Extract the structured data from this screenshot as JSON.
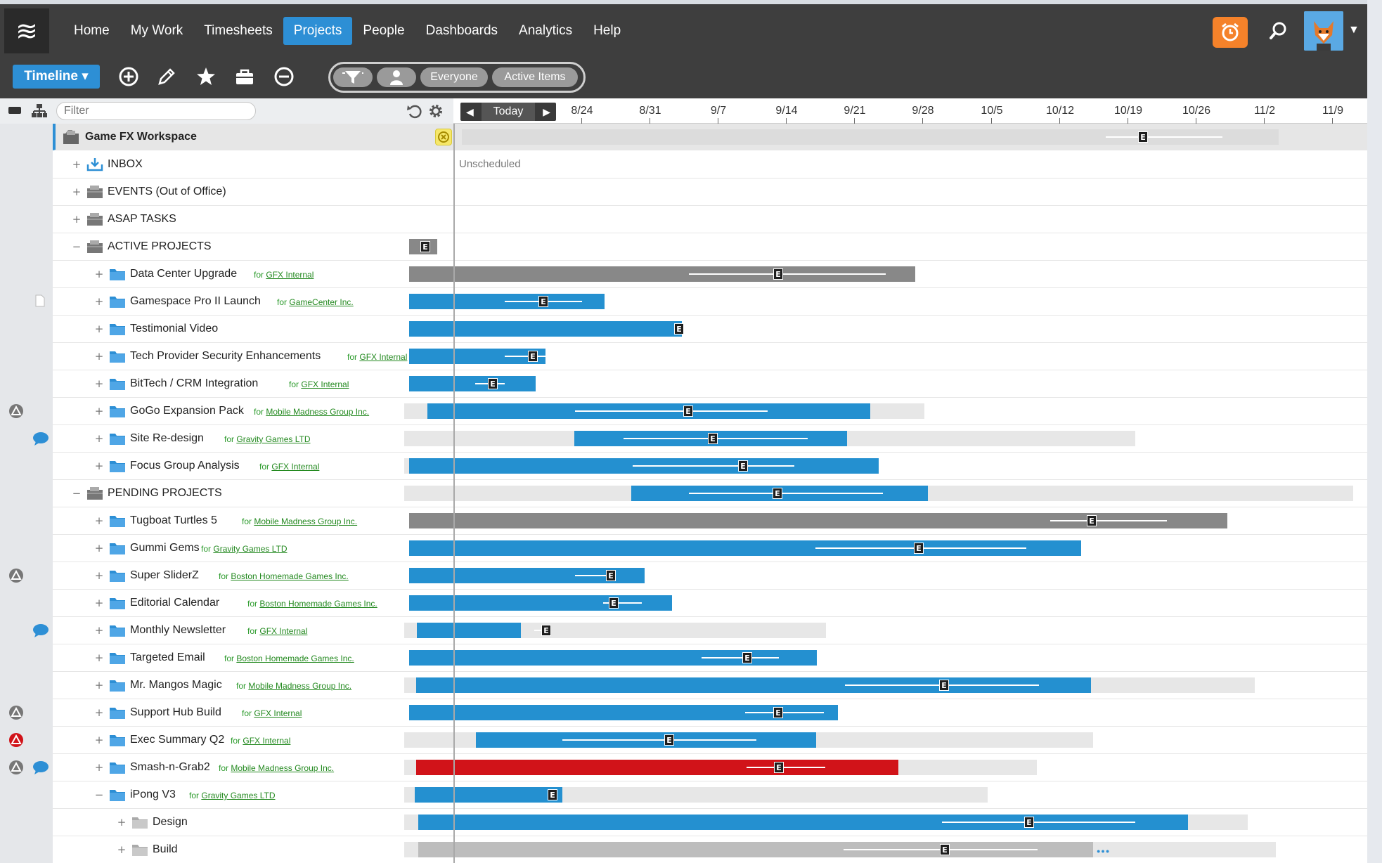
{
  "nav": {
    "menu_icon": "menu-icon",
    "items": [
      {
        "label": "Home",
        "active": false
      },
      {
        "label": "My Work",
        "active": false
      },
      {
        "label": "Timesheets",
        "active": false
      },
      {
        "label": "Projects",
        "active": true
      },
      {
        "label": "People",
        "active": false
      },
      {
        "label": "Dashboards",
        "active": false
      },
      {
        "label": "Analytics",
        "active": false
      },
      {
        "label": "Help",
        "active": false
      }
    ],
    "accent": "#2d8fd5",
    "alarm_color": "#f5822a"
  },
  "toolbar": {
    "view_label": "Timeline ▾",
    "pill_everyone": "Everyone",
    "pill_active": "Active Items",
    "icons": [
      "add-icon",
      "edit-icon",
      "star-icon",
      "briefcase-icon",
      "minus-circle-icon",
      "filter-icon",
      "person-icon"
    ]
  },
  "header": {
    "filter_placeholder": "Filter",
    "today_label": "Today",
    "dates": [
      "8/24",
      "8/31",
      "9/7",
      "9/14",
      "9/21",
      "9/28",
      "10/5",
      "10/12",
      "10/19",
      "10/26",
      "11/2",
      "11/9"
    ]
  },
  "workspace": {
    "name": "Game FX Workspace"
  },
  "unscheduled_label": "Unscheduled",
  "rows": [
    {
      "name": "INBOX",
      "level": 1,
      "kind": "inbox",
      "expander": "+"
    },
    {
      "name": "EVENTS (Out of Office)",
      "level": 1,
      "kind": "group",
      "expander": "+"
    },
    {
      "name": "ASAP TASKS",
      "level": 1,
      "kind": "group",
      "expander": "+"
    },
    {
      "name": "ACTIVE PROJECTS",
      "level": 1,
      "kind": "group",
      "expander": "−"
    },
    {
      "name": "Data Center Upgrade",
      "level": 2,
      "kind": "project",
      "expander": "+",
      "client": "GFX Internal"
    },
    {
      "name": "Gamespace Pro II Launch",
      "level": 2,
      "kind": "project",
      "expander": "+",
      "client": "GameCenter Inc."
    },
    {
      "name": "Testimonial Video",
      "level": 2,
      "kind": "project",
      "expander": "+",
      "client": ""
    },
    {
      "name": "Tech Provider Security Enhancements",
      "level": 2,
      "kind": "project",
      "expander": "+",
      "client": "GFX Internal"
    },
    {
      "name": "BitTech / CRM Integration",
      "level": 2,
      "kind": "project",
      "expander": "+",
      "client": "GFX Internal"
    },
    {
      "name": "GoGo Expansion Pack",
      "level": 2,
      "kind": "project",
      "expander": "+",
      "client": "Mobile Madness Group Inc."
    },
    {
      "name": "Site Re-design",
      "level": 2,
      "kind": "project",
      "expander": "+",
      "client": "Gravity Games LTD"
    },
    {
      "name": "Focus Group Analysis",
      "level": 2,
      "kind": "project",
      "expander": "+",
      "client": "GFX Internal"
    },
    {
      "name": "PENDING PROJECTS",
      "level": 1,
      "kind": "group",
      "expander": "−"
    },
    {
      "name": "Tugboat Turtles 5",
      "level": 2,
      "kind": "project",
      "expander": "+",
      "client": "Mobile Madness Group Inc."
    },
    {
      "name": "Gummi Gems",
      "level": 2,
      "kind": "project",
      "expander": "+",
      "client": "Gravity Games LTD"
    },
    {
      "name": "Super SliderZ",
      "level": 2,
      "kind": "project",
      "expander": "+",
      "client": "Boston Homemade Games Inc."
    },
    {
      "name": "Editorial Calendar",
      "level": 2,
      "kind": "project",
      "expander": "+",
      "client": "Boston Homemade Games Inc."
    },
    {
      "name": "Monthly Newsletter",
      "level": 2,
      "kind": "project",
      "expander": "+",
      "client": "GFX Internal"
    },
    {
      "name": "Targeted Email",
      "level": 2,
      "kind": "project",
      "expander": "+",
      "client": "Boston Homemade Games Inc."
    },
    {
      "name": "Mr. Mangos Magic",
      "level": 2,
      "kind": "project",
      "expander": "+",
      "client": "Mobile Madness Group Inc."
    },
    {
      "name": "Support Hub Build",
      "level": 2,
      "kind": "project",
      "expander": "+",
      "client": "GFX Internal"
    },
    {
      "name": "Exec Summary Q2",
      "level": 2,
      "kind": "project",
      "expander": "+",
      "client": "GFX Internal"
    },
    {
      "name": "Smash-n-Grab2",
      "level": 2,
      "kind": "project",
      "expander": "+",
      "client": "Mobile Madness Group Inc."
    },
    {
      "name": "iPong V3",
      "level": 2,
      "kind": "project",
      "expander": "−",
      "client": "Gravity Games LTD"
    },
    {
      "name": "Design",
      "level": 3,
      "kind": "phase",
      "expander": "+",
      "client": ""
    },
    {
      "name": "Build",
      "level": 3,
      "kind": "phase",
      "expander": "+",
      "client": ""
    }
  ],
  "for_prefix": "for",
  "estimate_marker": "E",
  "bar_colors": {
    "group": "#888888",
    "project": "#2490d0",
    "overdue": "#d11319",
    "phase": "#bdbdbd"
  }
}
